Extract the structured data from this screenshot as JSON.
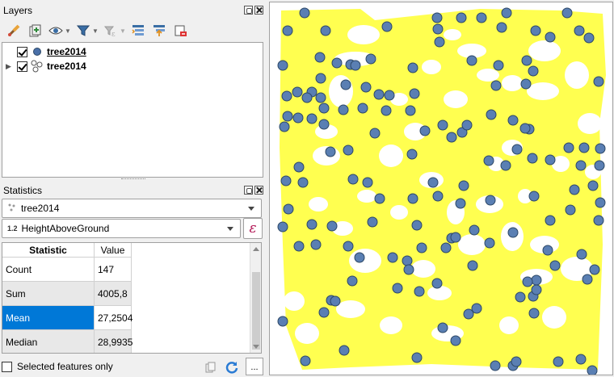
{
  "layers_panel": {
    "title": "Layers",
    "toolbar": [
      {
        "icon": "style-brush-icon"
      },
      {
        "icon": "add-group-icon"
      },
      {
        "icon": "eye-visibility-icon"
      },
      {
        "icon": "filter-funnel-icon"
      },
      {
        "icon": "expression-filter-icon"
      },
      {
        "icon": "expand-all-icon"
      },
      {
        "icon": "collapse-all-icon"
      },
      {
        "icon": "remove-layer-icon"
      }
    ],
    "layers": [
      {
        "name": "tree2014",
        "checked": true,
        "type": "point",
        "active": true
      },
      {
        "name": "tree2014",
        "checked": true,
        "type": "point-cluster",
        "active": false
      }
    ]
  },
  "statistics_panel": {
    "title": "Statistics",
    "layer_select": "tree2014",
    "field_type": "1.2",
    "field_select": "HeightAboveGround",
    "expression_symbol": "ε",
    "table": {
      "headers": [
        "Statistic",
        "Value"
      ],
      "rows": [
        {
          "statistic": "Count",
          "value": "147"
        },
        {
          "statistic": "Sum",
          "value": "4005,8"
        },
        {
          "statistic": "Mean",
          "value": "27,2504"
        },
        {
          "statistic": "Median",
          "value": "28,9935"
        }
      ],
      "selected_row": 2
    },
    "selected_features_only": "Selected features only",
    "more_label": "..."
  },
  "map": {
    "background": "#ffffff",
    "fill_color": "#ffff50",
    "point_color": "#5a7fb3",
    "point_stroke": "#2c4766"
  }
}
